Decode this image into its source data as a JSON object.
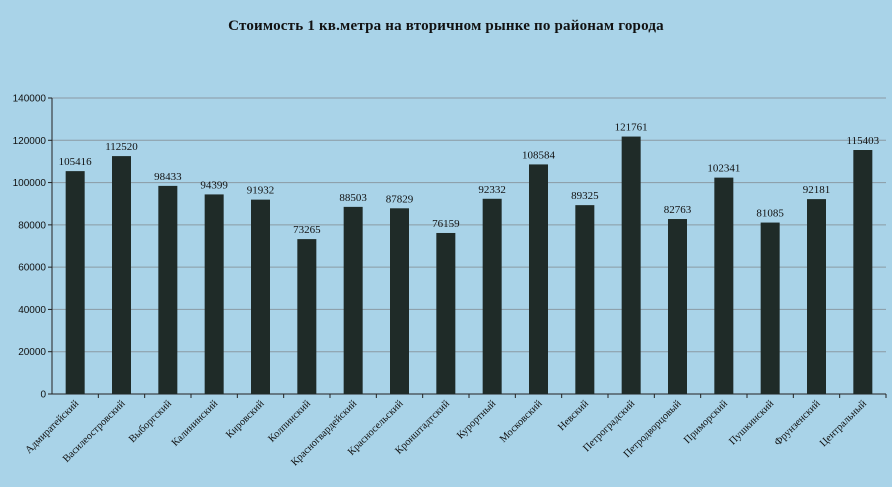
{
  "chart_data": {
    "type": "bar",
    "title": "Стоимость 1 кв.метра на вторичном  рынке  по районам  города",
    "xlabel": "",
    "ylabel": "",
    "ylim": [
      0,
      140000
    ],
    "yticks": [
      0,
      20000,
      40000,
      60000,
      80000,
      100000,
      120000,
      140000
    ],
    "grid": true,
    "legend": "none",
    "bar_color": "#1f2b28",
    "background_color": "#a9d3e8",
    "grid_color": "#8a9aa3",
    "categories": [
      "Адмиратейский",
      "Василеостровский",
      "Выборгский",
      "Калининский",
      "Кировский",
      "Колпинский",
      "Красногвардейский",
      "Красносельский",
      "Кронштадтский",
      "Курортный",
      "Московский",
      "Невский",
      "Петроградский",
      "Петродворцовый",
      "Приморский",
      "Пушкинский",
      "Фрунзенский",
      "Центральный"
    ],
    "values": [
      105416,
      112520,
      98433,
      94399,
      91932,
      73265,
      88503,
      87829,
      76159,
      92332,
      108584,
      89325,
      121761,
      82763,
      102341,
      81085,
      92181,
      115403
    ]
  }
}
